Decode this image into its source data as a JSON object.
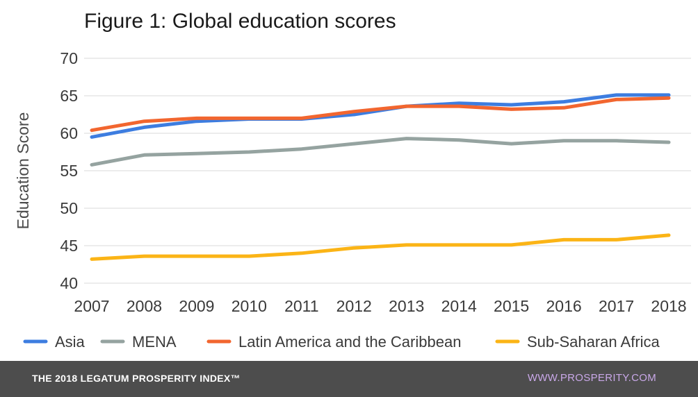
{
  "chart_data": {
    "type": "line",
    "title": "Figure 1: Global education scores",
    "xlabel": "",
    "ylabel": "Education Score",
    "ylim": [
      40,
      70
    ],
    "yticks": [
      40,
      45,
      50,
      55,
      60,
      65,
      70
    ],
    "grid": true,
    "legend_position": "bottom",
    "categories": [
      "2007",
      "2008",
      "2009",
      "2010",
      "2011",
      "2012",
      "2013",
      "2014",
      "2015",
      "2016",
      "2017",
      "2018"
    ],
    "series": [
      {
        "name": "Asia",
        "color": "#3d7de0",
        "values": [
          59.5,
          60.8,
          61.6,
          61.9,
          61.9,
          62.5,
          63.6,
          64.0,
          63.8,
          64.2,
          65.1,
          65.1
        ]
      },
      {
        "name": "MENA",
        "color": "#95a3a0",
        "values": [
          55.8,
          57.1,
          57.3,
          57.5,
          57.9,
          58.6,
          59.3,
          59.1,
          58.6,
          59.0,
          59.0,
          58.8
        ]
      },
      {
        "name": "Latin America and the Caribbean",
        "color": "#f2662f",
        "values": [
          60.4,
          61.6,
          62.0,
          62.0,
          62.0,
          62.9,
          63.6,
          63.6,
          63.2,
          63.4,
          64.5,
          64.7
        ]
      },
      {
        "name": "Sub-Saharan Africa",
        "color": "#fbb416",
        "values": [
          43.2,
          43.6,
          43.6,
          43.6,
          44.0,
          44.7,
          45.1,
          45.1,
          45.1,
          45.8,
          45.8,
          46.4
        ]
      }
    ]
  },
  "footer": {
    "brand": "THE 2018 LEGATUM PROSPERITY INDEX™",
    "url": "WWW.PROSPERITY.COM"
  }
}
